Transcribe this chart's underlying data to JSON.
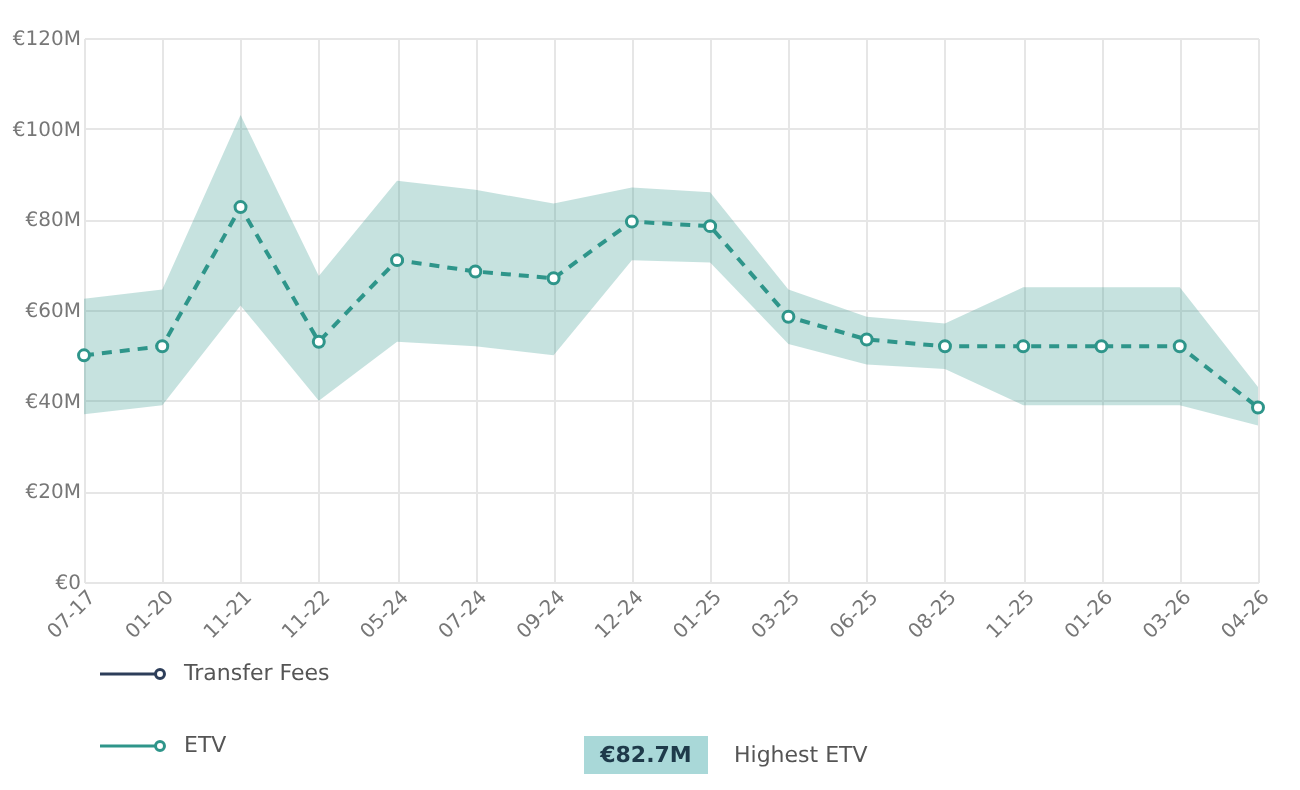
{
  "chart_data": {
    "type": "line",
    "categories": [
      "07-17",
      "01-20",
      "11-21",
      "11-22",
      "05-24",
      "07-24",
      "09-24",
      "12-24",
      "01-25",
      "03-25",
      "06-25",
      "08-25",
      "11-25",
      "01-26",
      "03-26",
      "04-26"
    ],
    "series": [
      {
        "name": "Transfer Fees",
        "color": "#2d3e5a",
        "values": [
          null,
          null,
          null,
          null,
          null,
          null,
          null,
          null,
          null,
          null,
          null,
          null,
          null,
          null,
          null,
          null
        ]
      },
      {
        "name": "ETV",
        "color": "#2e958a",
        "line_style": "dashed",
        "values": [
          50,
          52,
          82.7,
          53,
          71,
          68.5,
          67,
          79.5,
          78.5,
          58.5,
          53.5,
          52,
          52,
          52,
          52,
          38.5
        ],
        "lower": [
          37,
          39,
          61,
          40,
          53,
          52,
          50,
          71,
          70.5,
          52.5,
          48,
          47,
          39,
          39,
          39,
          34.5
        ],
        "upper": [
          62.5,
          64.5,
          103,
          67.5,
          88.5,
          86.5,
          83.5,
          87,
          86,
          64.5,
          58.5,
          57,
          65,
          65,
          65,
          43
        ]
      }
    ],
    "ylim": [
      0,
      120
    ],
    "yticks": [
      {
        "value": 0,
        "label": "€0"
      },
      {
        "value": 20,
        "label": "€20M"
      },
      {
        "value": 40,
        "label": "€40M"
      },
      {
        "value": 60,
        "label": "€60M"
      },
      {
        "value": 80,
        "label": "€80M"
      },
      {
        "value": 100,
        "label": "€100M"
      },
      {
        "value": 120,
        "label": "€120M"
      }
    ],
    "grid": true,
    "marker": "circle",
    "legend": "bottom left",
    "annotations": [
      "€82.7M",
      "Highest ETV"
    ]
  }
}
